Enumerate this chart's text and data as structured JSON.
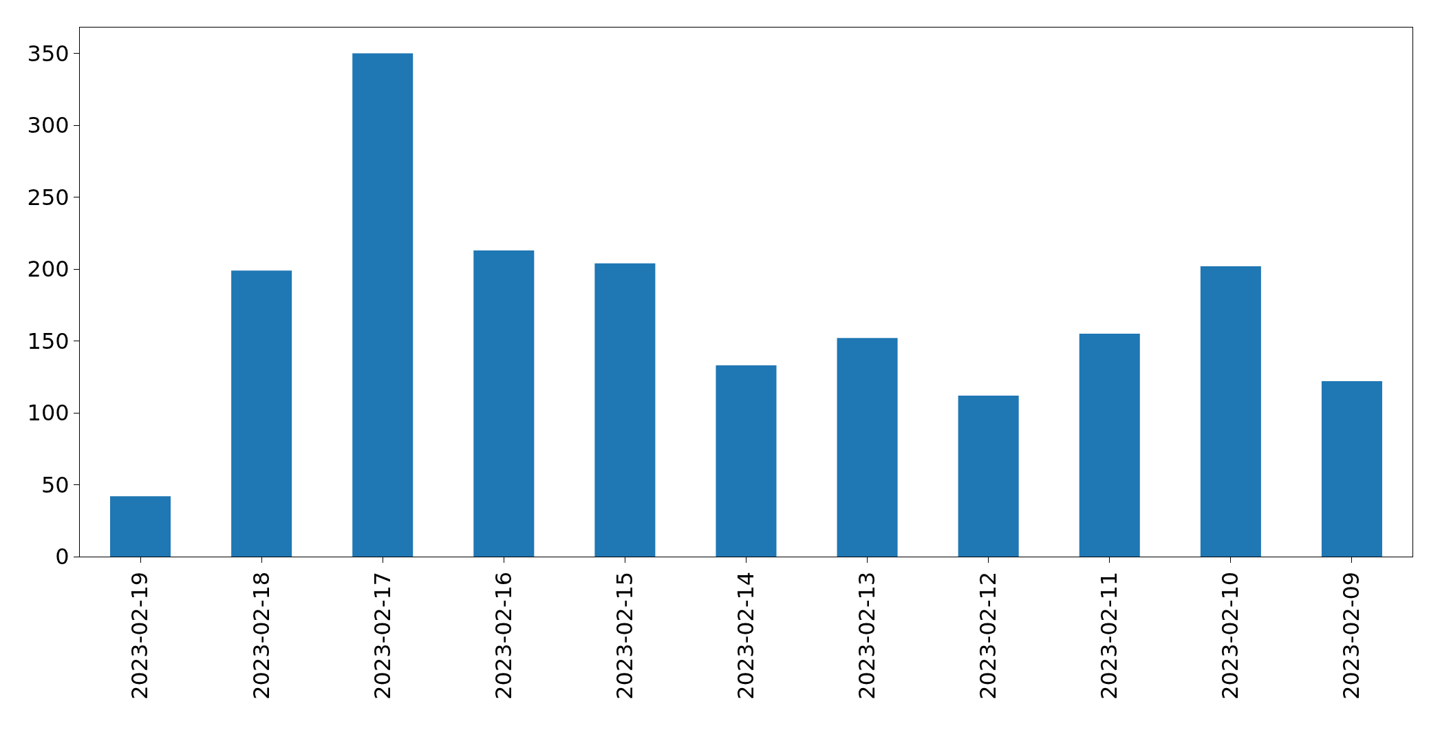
{
  "chart_data": {
    "type": "bar",
    "categories": [
      "2023-02-19",
      "2023-02-18",
      "2023-02-17",
      "2023-02-16",
      "2023-02-15",
      "2023-02-14",
      "2023-02-13",
      "2023-02-12",
      "2023-02-11",
      "2023-02-10",
      "2023-02-09"
    ],
    "values": [
      42,
      199,
      350,
      213,
      204,
      133,
      152,
      112,
      155,
      202,
      122
    ],
    "color": "#1f77b4",
    "ylim": [
      0,
      368
    ],
    "yticks": [
      0,
      50,
      100,
      150,
      200,
      250,
      300,
      350
    ],
    "grid": false
  }
}
